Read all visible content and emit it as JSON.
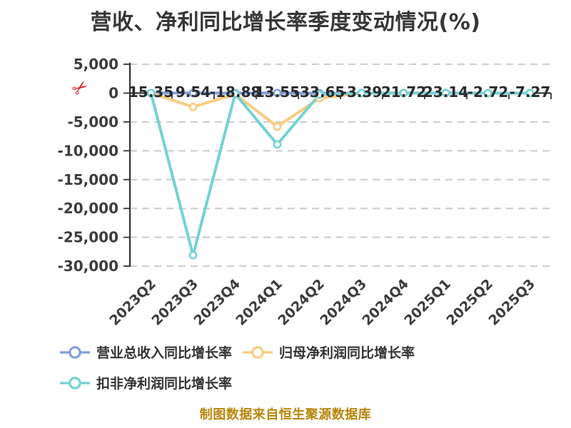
{
  "icons": {
    "scissors": "✂"
  },
  "footer": {
    "text": "制图数据来自恒生聚源数据库"
  },
  "colors": {
    "background": "#ffffff",
    "title_text": "#363636",
    "axis_line": "#333333",
    "tick_label": "#3c3c3c",
    "data_label": "#2b2b2b",
    "gridline": "#cfcfcf",
    "legend_text": "#333333",
    "footer_text": "#b8860b",
    "scissors_icon": "#e0262c"
  },
  "chart_data": {
    "type": "line",
    "title": "营收、净利同比增长率季度变动情况(%)",
    "unit": "%",
    "categories": [
      "2023Q2",
      "2023Q3",
      "2023Q4",
      "2024Q1",
      "2024Q2",
      "2024Q3",
      "2024Q4",
      "2025Q1",
      "2025Q2",
      "2025Q3"
    ],
    "y_ticks": [
      {
        "label": "5,000",
        "value": 5000
      },
      {
        "label": "0",
        "value": 0
      },
      {
        "label": "-5,000",
        "value": -5000
      },
      {
        "label": "-10,000",
        "value": -10000
      },
      {
        "label": "-15,000",
        "value": -15000
      },
      {
        "label": "-20,000",
        "value": -20000
      },
      {
        "label": "-25,000",
        "value": -25000
      },
      {
        "label": "-30,000",
        "value": -30000
      }
    ],
    "ylim": [
      -30000,
      5000
    ],
    "grid": {
      "horizontal_dashed": true,
      "vertical": false
    },
    "x_axis_position": "on-zero-line",
    "legend_position": "bottom-left-two-rows",
    "series": [
      {
        "key": "revenue-yoy",
        "name": "营业总收入同比增长率",
        "color": "#7f9fdb",
        "values": [
          15.35,
          9.54,
          -18.88,
          13.55,
          -33.65,
          -3.39,
          21.72,
          23.14,
          -2.72,
          -7.27
        ],
        "data_labels": [
          "15.35",
          "9.54",
          "-18.88",
          "13.55",
          "-33.65",
          "-3.39",
          "21.72",
          "23.14",
          "-2.72",
          "-7.27"
        ],
        "labels_shown": true
      },
      {
        "key": "net-profit-yoy",
        "name": "归母净利润同比增长率",
        "color": "#f8cc80",
        "values": [
          0,
          -2400,
          -200,
          -5800,
          -900,
          0,
          0,
          0,
          0,
          0
        ],
        "labels_shown": false,
        "values_note": "estimated from plot pixels; no labels shown on chart"
      },
      {
        "key": "non-gaap-net-profit-yoy",
        "name": "扣非净利润同比增长率",
        "color": "#74d2d4",
        "values": [
          0,
          -28100,
          -120,
          -8900,
          -250,
          0,
          0,
          0,
          0,
          0
        ],
        "labels_shown": false,
        "values_note": "estimated from plot pixels; no labels shown on chart"
      }
    ]
  }
}
